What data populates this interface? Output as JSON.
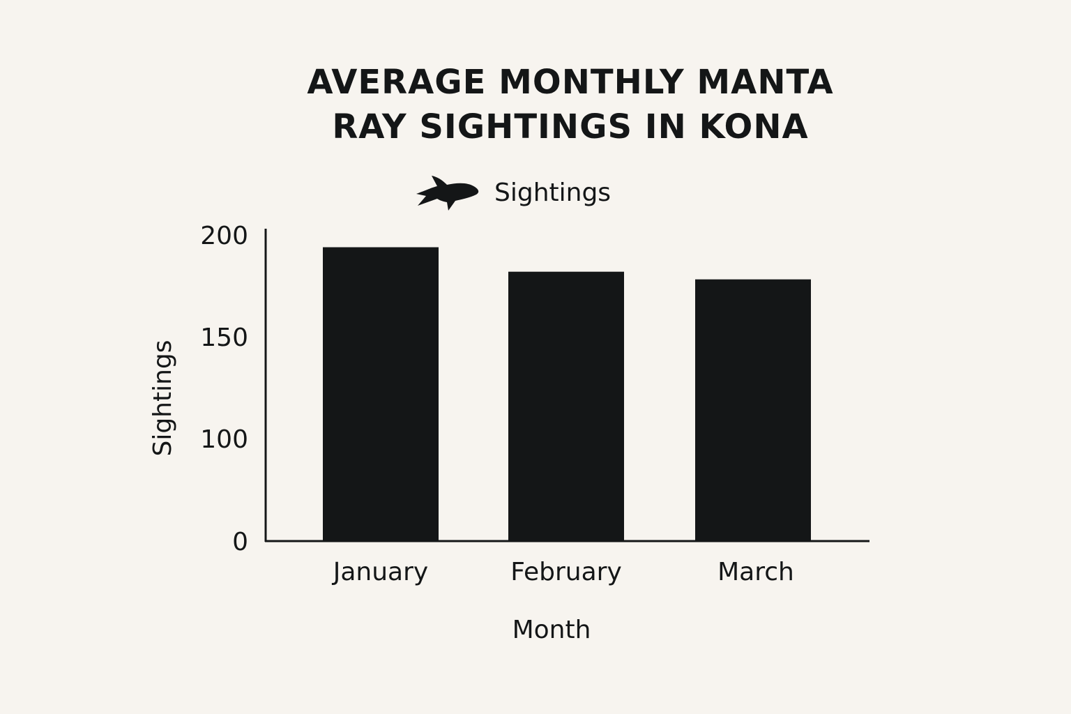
{
  "chart_data": {
    "type": "bar",
    "title_lines": [
      "AVERAGE MONTHLY MANTA",
      "RAY SIGHTINGS IN KONA"
    ],
    "categories": [
      "January",
      "February",
      "March"
    ],
    "values": [
      192,
      176,
      171
    ],
    "xlabel": "Month",
    "ylabel": "Sightings",
    "ylim": [
      0,
      200
    ],
    "yticks": [
      0,
      100,
      150,
      200
    ],
    "ytick_labels": [
      "0",
      "100",
      "150",
      "200"
    ],
    "legend": {
      "label": "Sightings",
      "icon": "manta-ray-icon",
      "placement": "top-left"
    },
    "grid": false,
    "bar_color": "#141617",
    "axis_color": "#141617",
    "background_color": "#f7f4ef"
  }
}
